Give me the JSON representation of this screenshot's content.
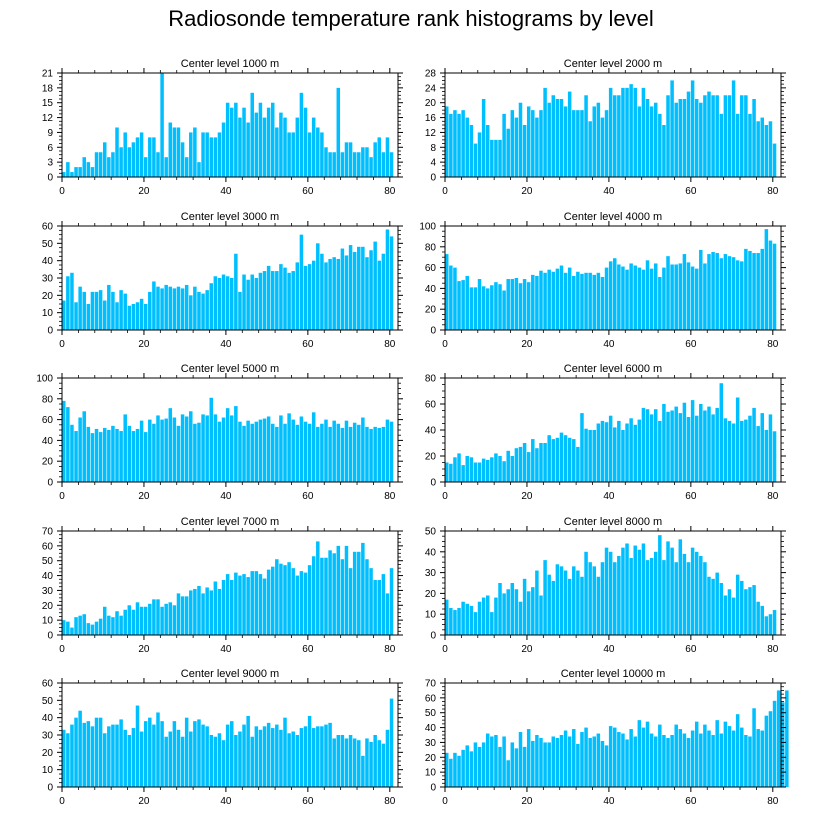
{
  "title": "Radiosonde temperature rank histograms by level",
  "colors": {
    "bar": "#00BFFF",
    "axis": "#000000",
    "background": "#FFFFFF"
  },
  "chart_data": [
    {
      "type": "bar",
      "title": "Center level 1000 m",
      "xlabel": "",
      "ylabel": "",
      "xlim": [
        0,
        82
      ],
      "ylim": [
        0,
        21
      ],
      "xticks": [
        0,
        20,
        40,
        60,
        80
      ],
      "yticks": [
        0,
        3,
        6,
        9,
        12,
        15,
        18,
        21
      ],
      "values": [
        1,
        3,
        1,
        2,
        2,
        4,
        3,
        2,
        5,
        5,
        7,
        4,
        5,
        10,
        6,
        9,
        6,
        7,
        8,
        9,
        4,
        8,
        8,
        5,
        21,
        4,
        11,
        10,
        10,
        7,
        4,
        9,
        10,
        3,
        9,
        9,
        8,
        8,
        9,
        11,
        15,
        14,
        15,
        12,
        14,
        11,
        17,
        13,
        15,
        12,
        14,
        15,
        10,
        13,
        12,
        9,
        9,
        12,
        17,
        14,
        9,
        12,
        10,
        9,
        6,
        5,
        5,
        18,
        5,
        7,
        7,
        5,
        5,
        6,
        6,
        4,
        7,
        8,
        5,
        8,
        5
      ]
    },
    {
      "type": "bar",
      "title": "Center level 2000 m",
      "xlabel": "",
      "ylabel": "",
      "xlim": [
        0,
        82
      ],
      "ylim": [
        0,
        28
      ],
      "xticks": [
        0,
        20,
        40,
        60,
        80
      ],
      "yticks": [
        0,
        4,
        8,
        12,
        16,
        20,
        24,
        28
      ],
      "values": [
        19,
        17,
        18,
        17,
        18,
        16,
        14,
        9,
        12,
        21,
        14,
        10,
        10,
        10,
        17,
        13,
        18,
        16,
        20,
        14,
        19,
        18,
        16,
        18,
        24,
        20,
        22,
        21,
        21,
        19,
        23,
        18,
        18,
        18,
        22,
        15,
        19,
        20,
        16,
        18,
        24,
        22,
        22,
        24,
        24,
        25,
        24,
        19,
        24,
        21,
        19,
        20,
        17,
        14,
        22,
        26,
        20,
        21,
        21,
        23,
        26,
        21,
        20,
        22,
        23,
        22,
        22,
        17,
        22,
        22,
        26,
        17,
        22,
        22,
        17,
        21,
        15,
        16,
        14,
        15,
        9
      ]
    },
    {
      "type": "bar",
      "title": "Center level 3000 m",
      "xlabel": "",
      "ylabel": "",
      "xlim": [
        0,
        82
      ],
      "ylim": [
        0,
        60
      ],
      "xticks": [
        0,
        20,
        40,
        60,
        80
      ],
      "yticks": [
        0,
        10,
        20,
        30,
        40,
        50,
        60
      ],
      "values": [
        17,
        31,
        33,
        16,
        25,
        22,
        15,
        22,
        22,
        23,
        17,
        26,
        22,
        16,
        23,
        21,
        14,
        15,
        16,
        18,
        15,
        22,
        28,
        25,
        24,
        26,
        25,
        24,
        25,
        24,
        26,
        20,
        25,
        22,
        21,
        23,
        27,
        31,
        30,
        32,
        31,
        30,
        44,
        22,
        32,
        29,
        32,
        30,
        33,
        34,
        37,
        34,
        34,
        38,
        36,
        33,
        34,
        39,
        55,
        37,
        38,
        40,
        50,
        44,
        39,
        41,
        42,
        41,
        47,
        43,
        49,
        45,
        48,
        48,
        42,
        46,
        51,
        40,
        44,
        58,
        54
      ]
    },
    {
      "type": "bar",
      "title": "Center level 4000 m",
      "xlabel": "",
      "ylabel": "",
      "xlim": [
        0,
        82
      ],
      "ylim": [
        0,
        100
      ],
      "xticks": [
        0,
        20,
        40,
        60,
        80
      ],
      "yticks": [
        0,
        20,
        40,
        60,
        80,
        100
      ],
      "values": [
        73,
        62,
        60,
        47,
        48,
        52,
        41,
        41,
        49,
        42,
        40,
        43,
        46,
        44,
        38,
        49,
        49,
        50,
        45,
        49,
        46,
        53,
        52,
        57,
        55,
        58,
        56,
        59,
        62,
        55,
        60,
        52,
        56,
        54,
        55,
        55,
        53,
        55,
        51,
        60,
        66,
        69,
        63,
        61,
        58,
        64,
        62,
        60,
        58,
        67,
        59,
        64,
        51,
        60,
        71,
        63,
        63,
        64,
        73,
        65,
        61,
        59,
        77,
        64,
        73,
        75,
        74,
        69,
        73,
        71,
        70,
        67,
        66,
        78,
        76,
        74,
        74,
        78,
        97,
        86,
        83
      ]
    },
    {
      "type": "bar",
      "title": "Center level 5000 m",
      "xlabel": "",
      "ylabel": "",
      "xlim": [
        0,
        82
      ],
      "ylim": [
        0,
        100
      ],
      "xticks": [
        0,
        20,
        40,
        60,
        80
      ],
      "yticks": [
        0,
        20,
        40,
        60,
        80,
        100
      ],
      "values": [
        78,
        72,
        55,
        49,
        62,
        68,
        53,
        47,
        51,
        48,
        52,
        50,
        54,
        51,
        49,
        65,
        54,
        49,
        51,
        59,
        48,
        60,
        56,
        64,
        60,
        61,
        71,
        62,
        54,
        65,
        63,
        68,
        56,
        57,
        65,
        64,
        81,
        65,
        58,
        62,
        71,
        64,
        73,
        58,
        54,
        59,
        56,
        58,
        60,
        61,
        63,
        56,
        53,
        64,
        56,
        66,
        60,
        55,
        63,
        58,
        56,
        67,
        53,
        56,
        60,
        53,
        59,
        56,
        52,
        59,
        53,
        57,
        55,
        62,
        53,
        51,
        53,
        52,
        53,
        60,
        58
      ]
    },
    {
      "type": "bar",
      "title": "Center level 6000 m",
      "xlabel": "",
      "ylabel": "",
      "xlim": [
        0,
        82
      ],
      "ylim": [
        0,
        80
      ],
      "xticks": [
        0,
        20,
        40,
        60,
        80
      ],
      "yticks": [
        0,
        20,
        40,
        60,
        80
      ],
      "values": [
        15,
        14,
        19,
        22,
        13,
        20,
        19,
        15,
        15,
        18,
        17,
        19,
        22,
        20,
        16,
        24,
        20,
        26,
        27,
        30,
        23,
        33,
        26,
        30,
        30,
        36,
        33,
        34,
        38,
        36,
        34,
        33,
        27,
        53,
        41,
        40,
        40,
        45,
        47,
        46,
        51,
        42,
        47,
        40,
        45,
        49,
        44,
        48,
        57,
        56,
        52,
        56,
        47,
        60,
        54,
        55,
        58,
        53,
        61,
        50,
        63,
        51,
        60,
        55,
        58,
        52,
        57,
        76,
        49,
        47,
        45,
        65,
        47,
        48,
        51,
        57,
        43,
        53,
        40,
        52,
        39
      ]
    },
    {
      "type": "bar",
      "title": "Center level 7000 m",
      "xlabel": "",
      "ylabel": "",
      "xlim": [
        0,
        82
      ],
      "ylim": [
        0,
        70
      ],
      "xticks": [
        0,
        20,
        40,
        60,
        80
      ],
      "yticks": [
        0,
        10,
        20,
        30,
        40,
        50,
        60,
        70
      ],
      "values": [
        10,
        9,
        5,
        12,
        13,
        14,
        8,
        7,
        9,
        11,
        19,
        13,
        12,
        16,
        13,
        17,
        20,
        17,
        22,
        19,
        19,
        21,
        24,
        24,
        19,
        21,
        22,
        20,
        28,
        26,
        26,
        30,
        31,
        33,
        28,
        32,
        30,
        36,
        31,
        37,
        41,
        37,
        42,
        40,
        41,
        39,
        43,
        43,
        41,
        38,
        44,
        46,
        51,
        48,
        47,
        49,
        45,
        40,
        43,
        42,
        47,
        53,
        63,
        52,
        52,
        57,
        55,
        60,
        51,
        60,
        45,
        56,
        56,
        62,
        51,
        45,
        37,
        37,
        41,
        28,
        45
      ]
    },
    {
      "type": "bar",
      "title": "Center level 8000 m",
      "xlabel": "",
      "ylabel": "",
      "xlim": [
        0,
        82
      ],
      "ylim": [
        0,
        50
      ],
      "xticks": [
        0,
        20,
        40,
        60,
        80
      ],
      "yticks": [
        0,
        10,
        20,
        30,
        40,
        50
      ],
      "values": [
        17,
        13,
        12,
        13,
        16,
        15,
        14,
        11,
        16,
        18,
        19,
        11,
        18,
        25,
        20,
        22,
        25,
        22,
        16,
        27,
        21,
        23,
        31,
        19,
        36,
        29,
        26,
        34,
        33,
        31,
        27,
        33,
        31,
        28,
        40,
        35,
        33,
        28,
        35,
        42,
        40,
        35,
        38,
        42,
        44,
        37,
        43,
        41,
        44,
        36,
        37,
        40,
        48,
        36,
        45,
        42,
        35,
        46,
        39,
        35,
        42,
        40,
        38,
        35,
        28,
        27,
        30,
        25,
        19,
        22,
        18,
        29,
        26,
        22,
        23,
        24,
        16,
        14,
        9,
        10,
        12
      ]
    },
    {
      "type": "bar",
      "title": "Center level 9000 m",
      "xlabel": "",
      "ylabel": "",
      "xlim": [
        0,
        82
      ],
      "ylim": [
        0,
        60
      ],
      "xticks": [
        0,
        20,
        40,
        60,
        80
      ],
      "yticks": [
        0,
        10,
        20,
        30,
        40,
        50,
        60
      ],
      "values": [
        33,
        31,
        36,
        40,
        44,
        37,
        38,
        35,
        40,
        40,
        31,
        35,
        36,
        36,
        39,
        33,
        30,
        34,
        47,
        32,
        38,
        40,
        36,
        43,
        38,
        29,
        32,
        38,
        33,
        29,
        40,
        32,
        38,
        39,
        36,
        35,
        30,
        29,
        31,
        27,
        36,
        38,
        30,
        32,
        36,
        41,
        29,
        35,
        33,
        35,
        37,
        34,
        36,
        33,
        40,
        31,
        32,
        30,
        34,
        35,
        41,
        34,
        35,
        35,
        36,
        37,
        28,
        30,
        30,
        28,
        30,
        28,
        27,
        18,
        28,
        26,
        30,
        27,
        25,
        33,
        51
      ]
    },
    {
      "type": "bar",
      "title": "Center level 10000 m",
      "xlabel": "",
      "ylabel": "",
      "xlim": [
        0,
        82
      ],
      "ylim": [
        0,
        70
      ],
      "xticks": [
        0,
        20,
        40,
        60,
        80
      ],
      "yticks": [
        0,
        10,
        20,
        30,
        40,
        50,
        60,
        70
      ],
      "values": [
        23,
        19,
        23,
        21,
        25,
        28,
        24,
        30,
        27,
        30,
        36,
        34,
        35,
        27,
        34,
        18,
        30,
        26,
        37,
        27,
        39,
        31,
        35,
        33,
        30,
        30,
        34,
        33,
        35,
        38,
        34,
        39,
        29,
        37,
        40,
        33,
        34,
        36,
        31,
        28,
        41,
        40,
        37,
        36,
        32,
        39,
        34,
        45,
        40,
        44,
        36,
        34,
        42,
        35,
        33,
        35,
        42,
        39,
        36,
        33,
        38,
        44,
        36,
        42,
        38,
        35,
        45,
        36,
        44,
        41,
        38,
        49,
        40,
        35,
        34,
        53,
        39,
        38,
        48,
        51,
        58,
        65,
        57,
        65
      ]
    }
  ]
}
